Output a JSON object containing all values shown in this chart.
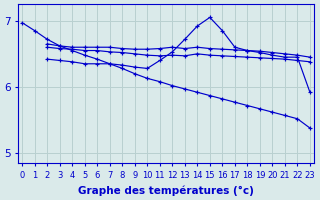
{
  "background_color": "#daeaea",
  "grid_color": "#b8d0d0",
  "line_color": "#0000cc",
  "xlabel": "Graphe des températures (°c)",
  "xlabel_fontsize": 7.5,
  "tick_fontsize": 6,
  "yticks": [
    5,
    6,
    7
  ],
  "xlim": [
    -0.3,
    23.3
  ],
  "ylim": [
    4.85,
    7.25
  ],
  "series": [
    {
      "x": [
        0,
        1,
        2,
        3,
        4,
        5,
        6,
        7,
        8,
        9,
        10,
        11,
        12,
        13,
        14,
        15,
        16,
        17,
        18,
        19,
        20,
        21,
        22,
        23
      ],
      "y": [
        6.97,
        6.85,
        6.72,
        6.62,
        6.55,
        6.48,
        6.42,
        6.35,
        6.28,
        6.2,
        6.13,
        6.08,
        6.02,
        5.97,
        5.92,
        5.87,
        5.82,
        5.77,
        5.72,
        5.67,
        5.62,
        5.57,
        5.52,
        5.38
      ]
    },
    {
      "x": [
        2,
        3,
        4,
        5,
        6,
        7,
        8,
        9,
        10,
        11,
        12,
        13,
        14,
        15,
        16,
        17,
        18,
        19,
        20,
        21,
        22,
        23
      ],
      "y": [
        6.65,
        6.62,
        6.6,
        6.6,
        6.6,
        6.6,
        6.58,
        6.57,
        6.57,
        6.58,
        6.6,
        6.58,
        6.6,
        6.58,
        6.57,
        6.56,
        6.55,
        6.54,
        6.52,
        6.5,
        6.48,
        6.45
      ]
    },
    {
      "x": [
        2,
        3,
        4,
        5,
        6,
        7,
        8,
        9,
        10,
        11,
        12,
        13,
        14,
        15,
        16,
        17,
        18,
        19,
        20,
        21,
        22,
        23
      ],
      "y": [
        6.6,
        6.58,
        6.57,
        6.55,
        6.55,
        6.53,
        6.52,
        6.5,
        6.48,
        6.47,
        6.48,
        6.47,
        6.5,
        6.48,
        6.47,
        6.46,
        6.45,
        6.44,
        6.43,
        6.42,
        6.4,
        6.38
      ]
    },
    {
      "x": [
        2,
        3,
        4,
        5,
        6,
        7,
        8,
        9,
        10,
        11,
        12,
        13,
        14,
        15,
        16,
        17,
        18,
        19,
        20,
        21,
        22,
        23
      ],
      "y": [
        6.42,
        6.4,
        6.38,
        6.35,
        6.35,
        6.35,
        6.33,
        6.3,
        6.28,
        6.4,
        6.53,
        6.72,
        6.92,
        7.05,
        6.85,
        6.6,
        6.55,
        6.52,
        6.48,
        6.45,
        6.45,
        5.92
      ]
    }
  ]
}
